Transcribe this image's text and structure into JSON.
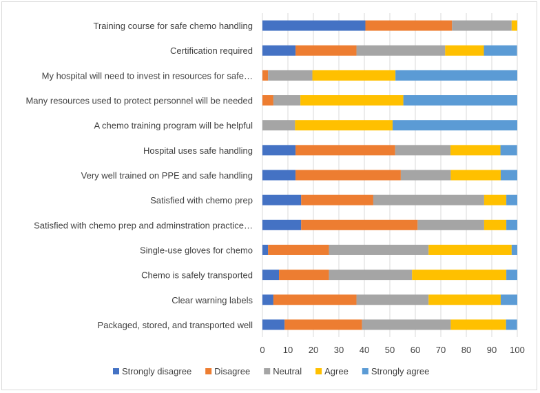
{
  "chart_data": {
    "type": "bar",
    "orientation": "horizontal",
    "stacked": true,
    "title": "",
    "xlabel": "",
    "ylabel": "",
    "xlim": [
      0,
      100
    ],
    "x_ticks": [
      "0",
      "10",
      "20",
      "30",
      "40",
      "50",
      "60",
      "70",
      "80",
      "90",
      "100"
    ],
    "grid": true,
    "legend_position": "bottom",
    "categories": [
      "Training course for safe chemo handling",
      "Certification required",
      "My hospital will need to invest in resources for safe…",
      "Many resources used to protect personnel will be needed",
      "A chemo training program  will be helpful",
      "Hospital uses safe handling",
      "Very well trained on PPE and safe handling",
      "Satisfied with chemo prep",
      "Satisfied with chemo prep and adminstration practice…",
      "Single-use gloves for chemo",
      "Chemo is safely transported",
      "Clear warning labels",
      "Packaged, stored, and transported well"
    ],
    "series": [
      {
        "name": "Strongly disagree",
        "color": "#4472C4",
        "values": [
          40.4,
          13.0,
          0.0,
          0.0,
          0.0,
          13.0,
          13.0,
          15.2,
          15.2,
          2.2,
          6.5,
          4.3,
          8.7
        ]
      },
      {
        "name": "Disagree",
        "color": "#ED7D31",
        "values": [
          34.0,
          23.9,
          2.2,
          4.3,
          0.0,
          39.1,
          41.3,
          28.3,
          45.7,
          23.9,
          19.6,
          32.6,
          30.4
        ]
      },
      {
        "name": "Neutral",
        "color": "#A5A5A5",
        "values": [
          23.4,
          34.8,
          17.4,
          10.6,
          12.8,
          21.7,
          19.6,
          43.5,
          26.1,
          39.1,
          32.6,
          28.3,
          34.8
        ]
      },
      {
        "name": "Agree",
        "color": "#FFC000",
        "values": [
          2.2,
          15.2,
          32.6,
          40.4,
          38.3,
          19.6,
          19.6,
          8.7,
          8.7,
          32.6,
          37.0,
          28.3,
          21.7
        ]
      },
      {
        "name": "Strongly agree",
        "color": "#5B9BD5",
        "values": [
          0.0,
          13.0,
          47.8,
          44.7,
          48.9,
          6.5,
          6.5,
          4.3,
          4.3,
          2.2,
          4.3,
          6.5,
          4.3
        ]
      }
    ]
  }
}
